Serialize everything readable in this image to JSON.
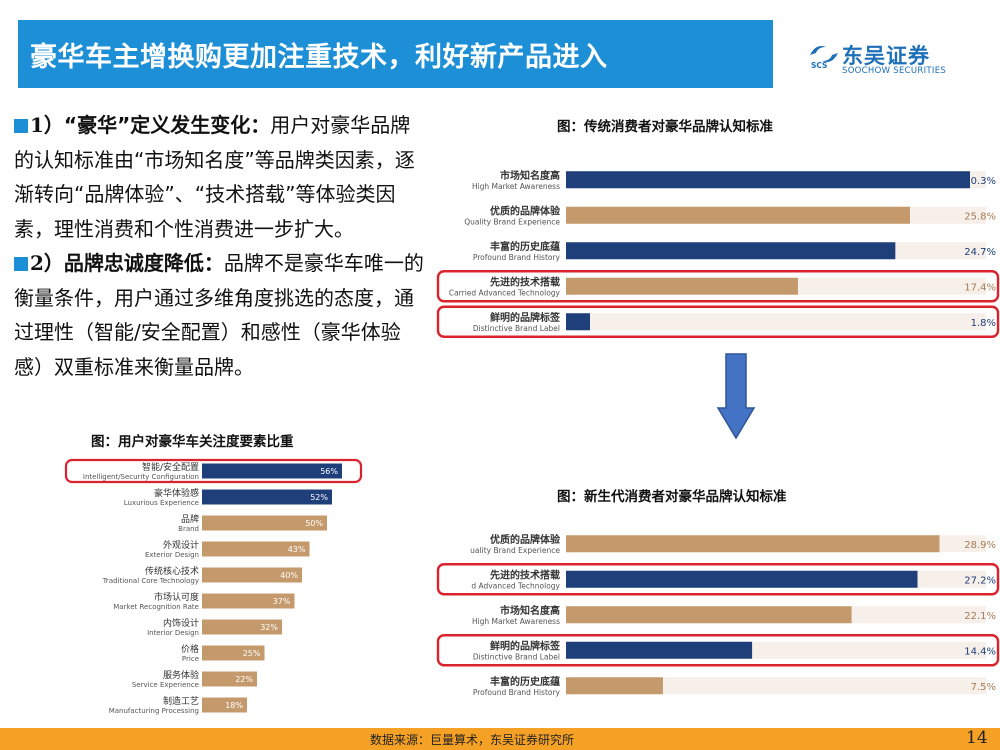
{
  "header": {
    "title": "豪华车主增换购更加注重技术，利好新产品进入"
  },
  "logo": {
    "name_cn": "东吴证券",
    "name_en": "SOOCHOW SECURITIES",
    "mark_text": "SCS"
  },
  "points": [
    {
      "num": "1）",
      "heading": "“豪华”定义发生变化：",
      "body": "用户对豪华品牌的认知标准由“市场知名度”等品牌类因素，逐渐转向“品牌体验”、“技术搭载”等体验类因素，理性消费和个性消费进一步扩大。"
    },
    {
      "num": "2）",
      "heading": "品牌忠诚度降低：",
      "body": "品牌不是豪华车唯一的衡量条件，用户通过多维角度挑选的态度，通过理性（智能/安全配置）和感性（豪华体验感）双重标准来衡量品牌。"
    }
  ],
  "captions": {
    "left": "图：用户对豪华车关注度要素比重",
    "top_right": "图：传统消费者对豪华品牌认知标准",
    "bottom_right": "图：新生代消费者对豪华品牌认知标准"
  },
  "colors": {
    "navy": "#1f3f7a",
    "tan": "#c49a6c",
    "track": "#f7efe9",
    "highlight": "#d9232d",
    "arrow": "#4472c4",
    "header": "#1d8fd6",
    "footer": "#f4a125"
  },
  "chart_data": [
    {
      "type": "bar",
      "title": "图：用户对豪华车关注度要素比重",
      "categories": [
        "智能/安全配置",
        "豪华体验感",
        "品牌",
        "外观设计",
        "传统核心技术",
        "市场认可度",
        "内饰设计",
        "价格",
        "服务体验",
        "制造工艺"
      ],
      "categories_en": [
        "Intelligent/Security Configuration",
        "Luxurious Experience",
        "Brand",
        "Exterior Design",
        "Traditional Core Technology",
        "Market Recognition Rate",
        "Interior Design",
        "Price",
        "Service Experience",
        "Manufacturing Processing"
      ],
      "values": [
        56,
        52,
        50,
        43,
        40,
        37,
        32,
        25,
        22,
        18
      ],
      "value_labels": [
        "56%",
        "52%",
        "50%",
        "43%",
        "40%",
        "37%",
        "32%",
        "25%",
        "22%",
        "18%"
      ],
      "colors": [
        "navy",
        "navy",
        "tan",
        "tan",
        "tan",
        "tan",
        "tan",
        "tan",
        "tan",
        "tan"
      ],
      "highlighted": [
        0
      ],
      "orientation": "horizontal",
      "xlim": [
        0,
        60
      ]
    },
    {
      "type": "bar",
      "title": "图：传统消费者对豪华品牌认知标准",
      "categories": [
        "市场知名度高",
        "优质的品牌体验",
        "丰富的历史底蕴",
        "先进的技术搭载",
        "鲜明的品牌标签"
      ],
      "categories_en": [
        "High Market Awareness",
        "Quality Brand Experience",
        "Profound Brand History",
        "Carried Advanced Technology",
        "Distinctive Brand Label"
      ],
      "values": [
        30.3,
        25.8,
        24.7,
        17.4,
        1.8
      ],
      "value_labels": [
        "30.3%",
        "25.8%",
        "24.7%",
        "17.4%",
        "1.8%"
      ],
      "colors": [
        "navy",
        "tan",
        "navy",
        "tan",
        "navy"
      ],
      "highlighted": [
        3,
        4
      ],
      "orientation": "horizontal",
      "xlim": [
        0,
        31.5
      ]
    },
    {
      "type": "bar",
      "title": "图：新生代消费者对豪华品牌认知标准",
      "categories": [
        "优质的品牌体验",
        "先进的技术搭载",
        "市场知名度高",
        "鲜明的品牌标签",
        "丰富的历史底蕴"
      ],
      "categories_en": [
        "uality Brand Experience",
        "d Advanced Technology",
        "High Market Awareness",
        "Distinctive Brand Label",
        "Profound Brand History"
      ],
      "values": [
        28.9,
        27.2,
        22.1,
        14.4,
        7.5
      ],
      "value_labels": [
        "28.9%",
        "27.2%",
        "22.1%",
        "14.4%",
        "7.5%"
      ],
      "colors": [
        "tan",
        "navy",
        "tan",
        "navy",
        "tan"
      ],
      "highlighted": [
        1,
        3
      ],
      "orientation": "horizontal",
      "xlim": [
        0,
        32.5
      ]
    }
  ],
  "footer": {
    "source": "数据来源：巨量算术，东吴证券研究所",
    "page": "14"
  }
}
